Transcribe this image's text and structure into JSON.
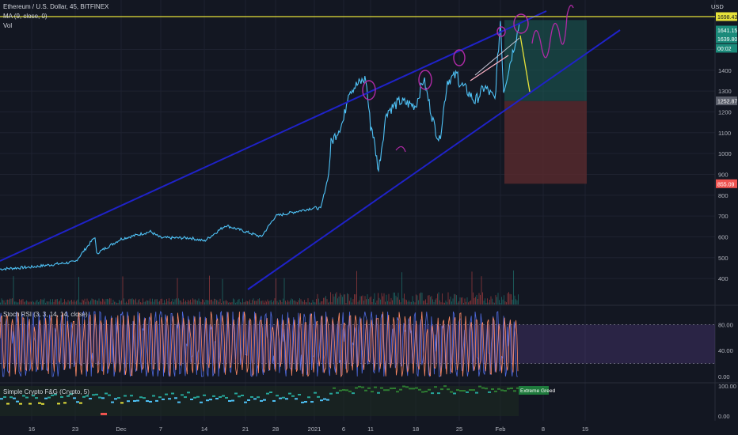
{
  "header": {
    "title": "Ethereum / U.S. Dollar, 45, BITFINEX",
    "ma_label": "MA (9, close, 0)",
    "vol_label": "Vol",
    "currency": "USD"
  },
  "stoch": {
    "label": "Stoch RSI (3, 3, 14, 14, close)"
  },
  "fng": {
    "label": "Simple Crypto F&G (Crypto, 5)",
    "badge": "Extreme Greed"
  },
  "colors": {
    "background": "#131722",
    "channel": "#1f22c8",
    "candle_up": "#26a69a",
    "candle_down": "#ef5350",
    "ma": "#4fc3f7",
    "drawings": "#b02aa6",
    "target_zone": "#1b5e57",
    "stop_zone": "#5a2a2e",
    "stoch_k": "#4f6ae0",
    "stoch_d": "#ff8a65",
    "stoch_band": "#7e57c2",
    "resistance": "#e6e23a"
  },
  "chart_data": [
    {
      "type": "line",
      "title": "Ethereum / U.S. Dollar, 45, BITFINEX",
      "ylabel": "USD",
      "y_ticks": [
        1500,
        1400,
        1300,
        1200,
        1100,
        1000,
        900,
        800,
        700,
        600,
        500,
        400
      ],
      "x_ticks": [
        "16",
        "23",
        "Dec",
        "7",
        "14",
        "21",
        "28",
        "2021",
        "6",
        "11",
        "18",
        "25",
        "Feb",
        "8",
        "15"
      ],
      "price_tags": [
        "1698.43",
        "1641.15",
        "1639.80",
        "00:02",
        "1252.87",
        "855.09"
      ],
      "series": [
        {
          "x": [
            "16",
            "23",
            "Dec",
            "7",
            "14",
            "21",
            "28",
            "2021",
            "6",
            "11",
            "18",
            "25",
            "Feb"
          ],
          "values": [
            455,
            480,
            590,
            595,
            580,
            625,
            700,
            740,
            1160,
            1130,
            1230,
            1340,
            1640
          ]
        }
      ]
    },
    {
      "type": "line",
      "title": "Stoch RSI (3, 3, 14, 14, close)",
      "y_ticks": [
        "80.00",
        "40.00",
        "0.00"
      ],
      "ylim": [
        0,
        100
      ],
      "band": [
        20,
        80
      ]
    },
    {
      "type": "line",
      "title": "Simple Crypto F&G (Crypto, 5)",
      "y_ticks": [
        "100.00",
        "0.00"
      ],
      "ylim": [
        0,
        100
      ]
    }
  ]
}
